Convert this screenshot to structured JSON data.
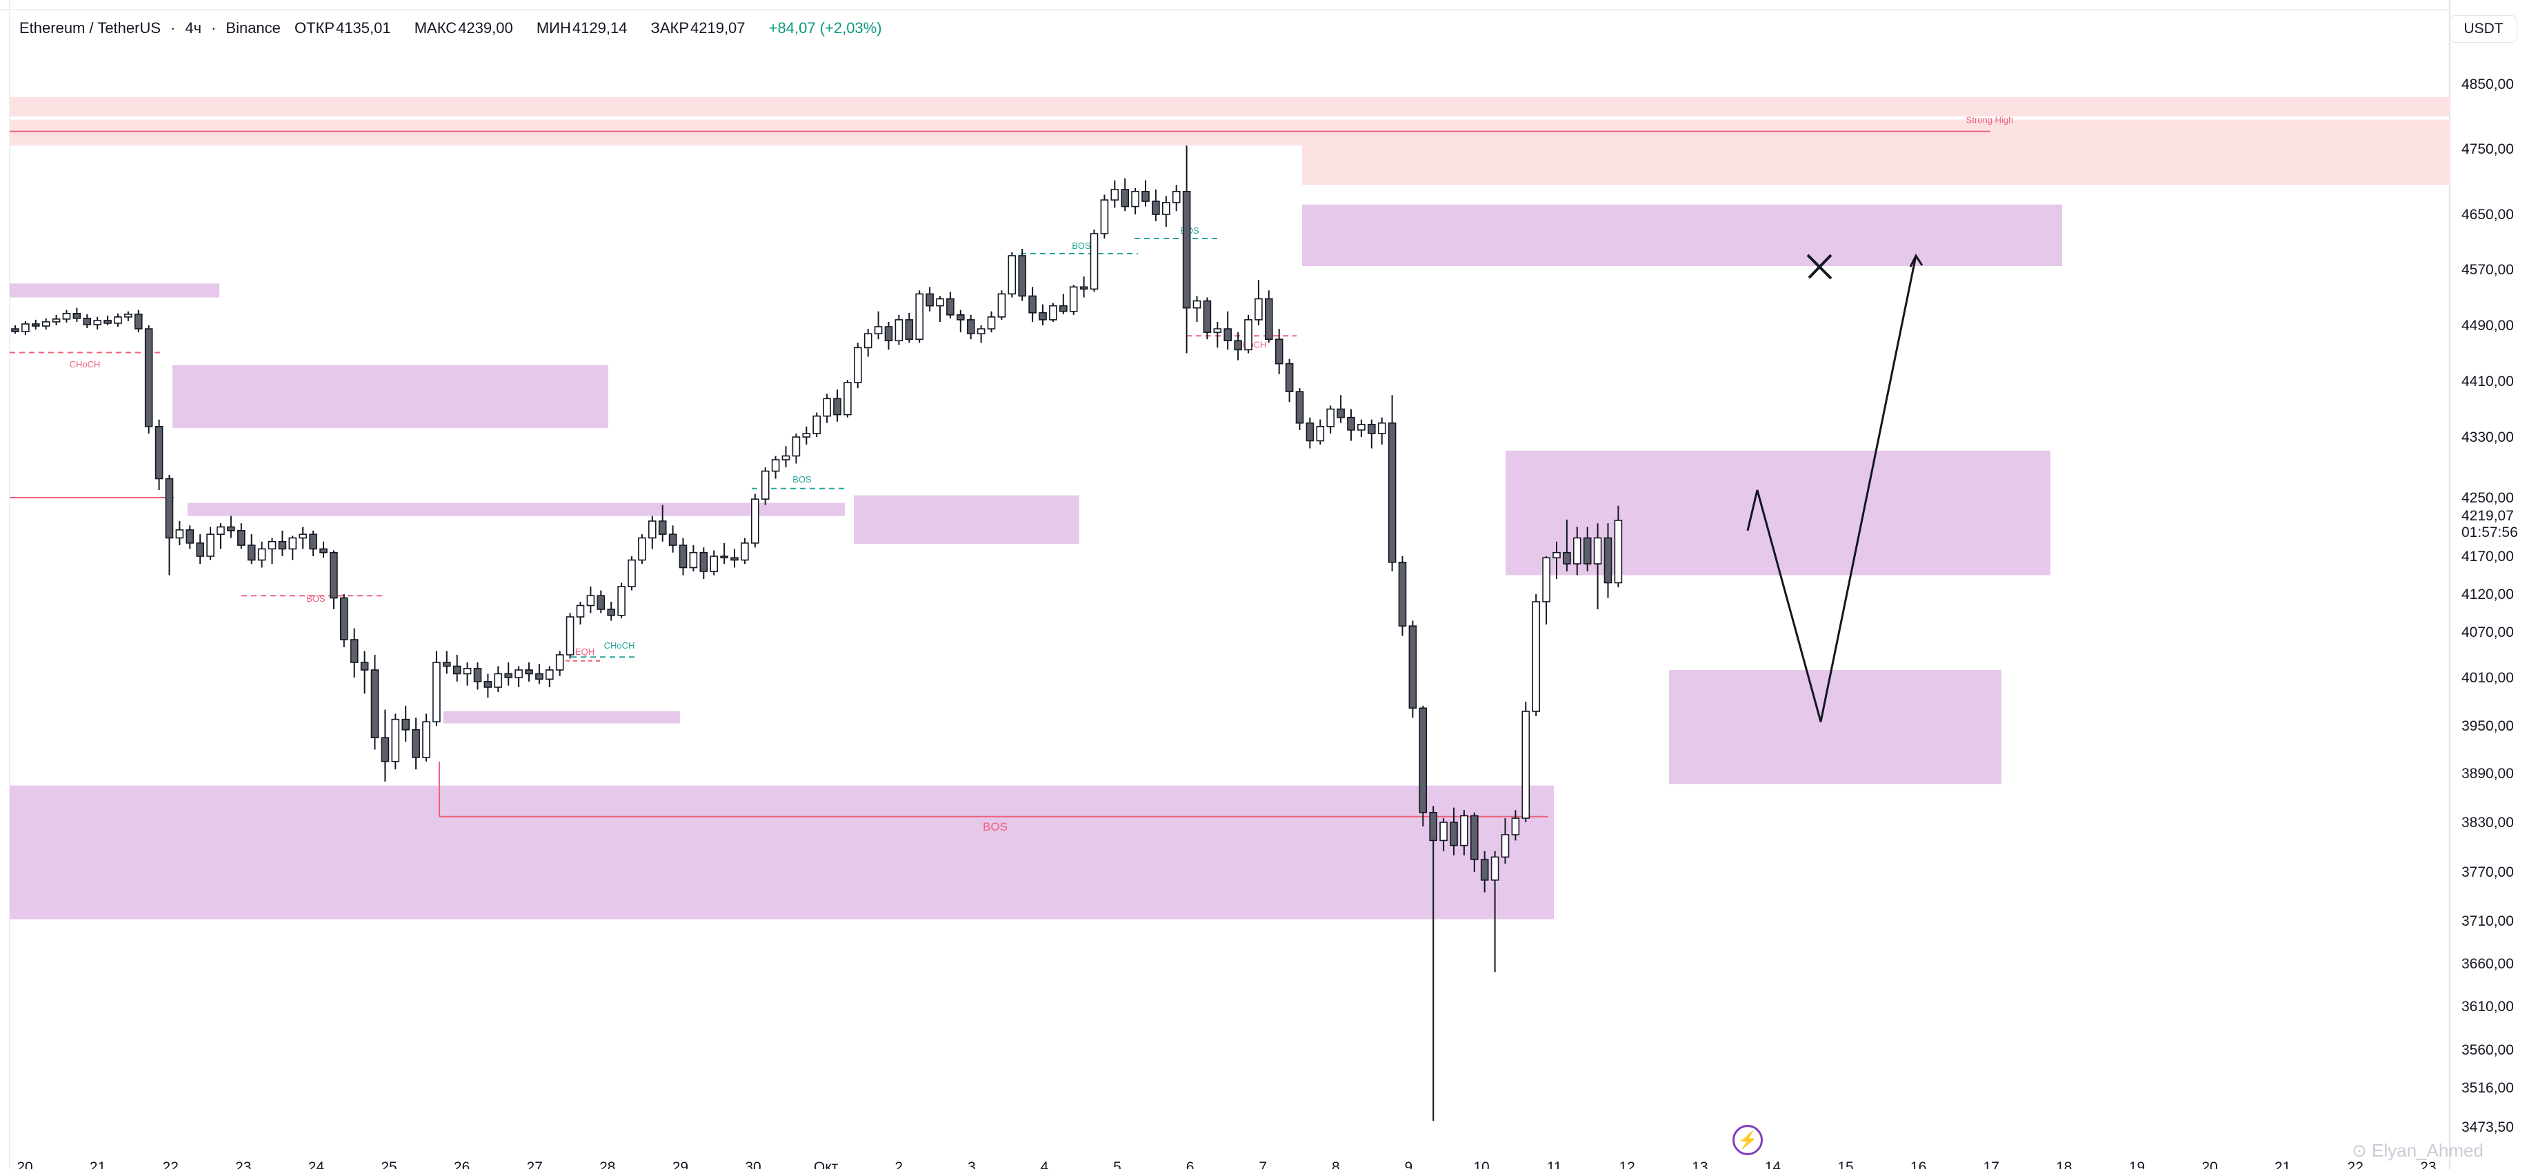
{
  "header": {
    "pair": "Ethereum / TetherUS",
    "timeframe": "4ч",
    "exchange": "Binance",
    "open_label": "ОТКР",
    "open": "4135,01",
    "high_label": "МАКС",
    "high": "4239,00",
    "low_label": "МИН",
    "low": "4129,14",
    "close_label": "ЗАКР",
    "close": "4219,07",
    "change": "+84,07 (+2,03%)"
  },
  "currency_button": "USDT",
  "price_axis": {
    "ticks": [
      "4850,00",
      "4750,00",
      "4650,00",
      "4570,00",
      "4490,00",
      "4410,00",
      "4330,00",
      "4250,00",
      "4170,00",
      "4120,00",
      "4070,00",
      "4010,00",
      "3950,00",
      "3890,00",
      "3830,00",
      "3770,00",
      "3710,00",
      "3660,00",
      "3610,00",
      "3560,00",
      "3516,00",
      "3473,50"
    ],
    "current_price": "4219,07",
    "countdown": "01:57:56"
  },
  "time_axis": {
    "ticks": [
      "20",
      "21",
      "22",
      "23",
      "24",
      "25",
      "26",
      "27",
      "28",
      "29",
      "30",
      "Окт",
      "2",
      "3",
      "4",
      "5",
      "6",
      "7",
      "8",
      "9",
      "10",
      "11",
      "12",
      "13",
      "14",
      "15",
      "16",
      "17",
      "18",
      "19",
      "20",
      "21",
      "22",
      "23"
    ]
  },
  "watermark": "Elyan_Ahmed",
  "chart_data": {
    "type": "candlestick",
    "symbol": "ETHUSDT",
    "interval": "4h",
    "candles": [
      [
        4485,
        4490,
        4478,
        4481
      ],
      [
        4481,
        4496,
        4476,
        4492
      ],
      [
        4492,
        4498,
        4484,
        4489
      ],
      [
        4489,
        4500,
        4484,
        4495
      ],
      [
        4495,
        4505,
        4490,
        4499
      ],
      [
        4499,
        4512,
        4494,
        4507
      ],
      [
        4507,
        4515,
        4495,
        4500
      ],
      [
        4500,
        4506,
        4486,
        4491
      ],
      [
        4491,
        4502,
        4484,
        4497
      ],
      [
        4497,
        4504,
        4490,
        4493
      ],
      [
        4493,
        4507,
        4488,
        4502
      ],
      [
        4502,
        4510,
        4496,
        4506
      ],
      [
        4506,
        4512,
        4480,
        4485
      ],
      [
        4485,
        4490,
        4335,
        4345
      ],
      [
        4345,
        4355,
        4260,
        4275
      ],
      [
        4275,
        4280,
        4145,
        4195
      ],
      [
        4195,
        4218,
        4185,
        4206
      ],
      [
        4206,
        4212,
        4180,
        4188
      ],
      [
        4188,
        4200,
        4160,
        4170
      ],
      [
        4170,
        4210,
        4165,
        4200
      ],
      [
        4200,
        4215,
        4180,
        4210
      ],
      [
        4210,
        4225,
        4195,
        4205
      ],
      [
        4205,
        4215,
        4180,
        4185
      ],
      [
        4185,
        4200,
        4160,
        4165
      ],
      [
        4165,
        4190,
        4155,
        4180
      ],
      [
        4180,
        4195,
        4160,
        4190
      ],
      [
        4190,
        4205,
        4170,
        4180
      ],
      [
        4180,
        4198,
        4165,
        4195
      ],
      [
        4195,
        4210,
        4180,
        4200
      ],
      [
        4200,
        4205,
        4170,
        4180
      ],
      [
        4180,
        4190,
        4168,
        4175
      ],
      [
        4175,
        4178,
        4100,
        4115
      ],
      [
        4115,
        4120,
        4050,
        4060
      ],
      [
        4060,
        4075,
        4010,
        4030
      ],
      [
        4030,
        4045,
        3990,
        4020
      ],
      [
        4020,
        4040,
        3920,
        3935
      ],
      [
        3935,
        3970,
        3880,
        3905
      ],
      [
        3905,
        3965,
        3895,
        3958
      ],
      [
        3958,
        3975,
        3930,
        3945
      ],
      [
        3945,
        3960,
        3895,
        3910
      ],
      [
        3910,
        3965,
        3905,
        3955
      ],
      [
        3955,
        4045,
        3950,
        4030
      ],
      [
        4030,
        4045,
        4015,
        4025
      ],
      [
        4025,
        4040,
        4005,
        4015
      ],
      [
        4015,
        4030,
        4000,
        4022
      ],
      [
        4022,
        4030,
        3995,
        4005
      ],
      [
        4005,
        4015,
        3985,
        3998
      ],
      [
        3998,
        4025,
        3992,
        4015
      ],
      [
        4015,
        4030,
        4000,
        4010
      ],
      [
        4010,
        4025,
        3998,
        4020
      ],
      [
        4020,
        4030,
        4005,
        4015
      ],
      [
        4015,
        4028,
        4002,
        4008
      ],
      [
        4008,
        4025,
        3998,
        4020
      ],
      [
        4020,
        4045,
        4012,
        4040
      ],
      [
        4040,
        4095,
        4035,
        4090
      ],
      [
        4090,
        4110,
        4080,
        4105
      ],
      [
        4105,
        4130,
        4095,
        4118
      ],
      [
        4118,
        4125,
        4095,
        4100
      ],
      [
        4100,
        4110,
        4085,
        4092
      ],
      [
        4092,
        4135,
        4088,
        4130
      ],
      [
        4130,
        4170,
        4125,
        4165
      ],
      [
        4165,
        4200,
        4160,
        4195
      ],
      [
        4195,
        4225,
        4180,
        4218
      ],
      [
        4218,
        4240,
        4190,
        4200
      ],
      [
        4200,
        4212,
        4175,
        4185
      ],
      [
        4185,
        4195,
        4145,
        4155
      ],
      [
        4155,
        4185,
        4150,
        4175
      ],
      [
        4175,
        4182,
        4140,
        4150
      ],
      [
        4150,
        4178,
        4145,
        4170
      ],
      [
        4170,
        4188,
        4160,
        4168
      ],
      [
        4168,
        4180,
        4155,
        4165
      ],
      [
        4165,
        4195,
        4160,
        4188
      ],
      [
        4188,
        4255,
        4182,
        4248
      ],
      [
        4248,
        4290,
        4240,
        4285
      ],
      [
        4285,
        4305,
        4275,
        4300
      ],
      [
        4300,
        4318,
        4290,
        4305
      ],
      [
        4305,
        4335,
        4295,
        4330
      ],
      [
        4330,
        4345,
        4320,
        4335
      ],
      [
        4335,
        4365,
        4330,
        4360
      ],
      [
        4360,
        4392,
        4350,
        4385
      ],
      [
        4385,
        4398,
        4352,
        4362
      ],
      [
        4362,
        4412,
        4358,
        4408
      ],
      [
        4408,
        4465,
        4400,
        4458
      ],
      [
        4458,
        4485,
        4445,
        4478
      ],
      [
        4478,
        4510,
        4470,
        4488
      ],
      [
        4488,
        4495,
        4455,
        4468
      ],
      [
        4468,
        4505,
        4462,
        4498
      ],
      [
        4498,
        4508,
        4465,
        4470
      ],
      [
        4470,
        4540,
        4465,
        4535
      ],
      [
        4535,
        4545,
        4510,
        4518
      ],
      [
        4518,
        4532,
        4495,
        4528
      ],
      [
        4528,
        4538,
        4500,
        4505
      ],
      [
        4505,
        4512,
        4480,
        4498
      ],
      [
        4498,
        4505,
        4470,
        4478
      ],
      [
        4478,
        4490,
        4465,
        4485
      ],
      [
        4485,
        4510,
        4480,
        4502
      ],
      [
        4502,
        4540,
        4498,
        4535
      ],
      [
        4535,
        4595,
        4530,
        4590
      ],
      [
        4590,
        4600,
        4525,
        4532
      ],
      [
        4532,
        4545,
        4495,
        4508
      ],
      [
        4508,
        4520,
        4490,
        4498
      ],
      [
        4498,
        4522,
        4495,
        4518
      ],
      [
        4518,
        4535,
        4506,
        4510
      ],
      [
        4510,
        4548,
        4505,
        4545
      ],
      [
        4545,
        4560,
        4530,
        4542
      ],
      [
        4542,
        4628,
        4538,
        4622
      ],
      [
        4622,
        4680,
        4615,
        4672
      ],
      [
        4672,
        4702,
        4660,
        4688
      ],
      [
        4688,
        4705,
        4655,
        4662
      ],
      [
        4662,
        4690,
        4650,
        4685
      ],
      [
        4685,
        4702,
        4662,
        4670
      ],
      [
        4670,
        4688,
        4640,
        4650
      ],
      [
        4650,
        4678,
        4632,
        4668
      ],
      [
        4668,
        4695,
        4655,
        4685
      ],
      [
        4685,
        4755,
        4450,
        4515
      ],
      [
        4515,
        4532,
        4495,
        4525
      ],
      [
        4525,
        4530,
        4470,
        4480
      ],
      [
        4480,
        4495,
        4458,
        4485
      ],
      [
        4485,
        4510,
        4455,
        4468
      ],
      [
        4468,
        4480,
        4440,
        4455
      ],
      [
        4455,
        4505,
        4450,
        4498
      ],
      [
        4498,
        4555,
        4490,
        4528
      ],
      [
        4528,
        4540,
        4465,
        4470
      ],
      [
        4470,
        4485,
        4420,
        4435
      ],
      [
        4435,
        4442,
        4380,
        4395
      ],
      [
        4395,
        4400,
        4340,
        4350
      ],
      [
        4350,
        4358,
        4315,
        4325
      ],
      [
        4325,
        4355,
        4320,
        4345
      ],
      [
        4345,
        4375,
        4335,
        4370
      ],
      [
        4370,
        4390,
        4350,
        4358
      ],
      [
        4358,
        4370,
        4325,
        4340
      ],
      [
        4340,
        4355,
        4330,
        4348
      ],
      [
        4348,
        4355,
        4315,
        4335
      ],
      [
        4335,
        4358,
        4320,
        4350
      ],
      [
        4350,
        4390,
        4150,
        4162
      ],
      [
        4162,
        4170,
        4065,
        4078
      ],
      [
        4078,
        4085,
        3960,
        3972
      ],
      [
        3972,
        3975,
        3825,
        3842
      ],
      [
        3842,
        3850,
        3480,
        3808
      ],
      [
        3808,
        3835,
        3795,
        3830
      ],
      [
        3830,
        3848,
        3790,
        3802
      ],
      [
        3802,
        3845,
        3790,
        3838
      ],
      [
        3838,
        3842,
        3770,
        3785
      ],
      [
        3785,
        3795,
        3745,
        3760
      ],
      [
        3760,
        3795,
        3650,
        3788
      ],
      [
        3788,
        3835,
        3780,
        3815
      ],
      [
        3815,
        3845,
        3808,
        3835
      ],
      [
        3835,
        3980,
        3830,
        3968
      ],
      [
        3968,
        4120,
        3962,
        4110
      ],
      [
        4110,
        4170,
        4080,
        4168
      ],
      [
        4168,
        4190,
        4140,
        4175
      ],
      [
        4175,
        4220,
        4150,
        4160
      ],
      [
        4160,
        4210,
        4145,
        4195
      ],
      [
        4195,
        4210,
        4150,
        4160
      ],
      [
        4160,
        4215,
        4100,
        4195
      ],
      [
        4195,
        4215,
        4115,
        4135
      ],
      [
        4135,
        4239,
        4129,
        4219
      ]
    ],
    "zones": [
      {
        "from": 4800,
        "to": 4830
      },
      {
        "from": 4755,
        "to": 4795
      },
      {
        "from": 4695,
        "to": 4755
      },
      {
        "from": 4575,
        "to": 4665
      },
      {
        "from": 4530,
        "to": 4550
      },
      {
        "from": 4343,
        "to": 4433
      },
      {
        "from": 4225,
        "to": 4243
      },
      {
        "from": 4187,
        "to": 4253
      },
      {
        "from": 4145,
        "to": 4312
      },
      {
        "from": 3953,
        "to": 3968
      },
      {
        "from": 3877,
        "to": 4020
      },
      {
        "from": 3712,
        "to": 3875
      }
    ],
    "annotations": [
      "Strong High",
      "CHoCH",
      "BOS",
      "BOS",
      "BOS",
      "BOS",
      "EQH",
      "CHoCH",
      "CHoCH",
      "BOS"
    ],
    "projection": [
      4260,
      3955,
      4590
    ],
    "rejected_target": 4575
  }
}
